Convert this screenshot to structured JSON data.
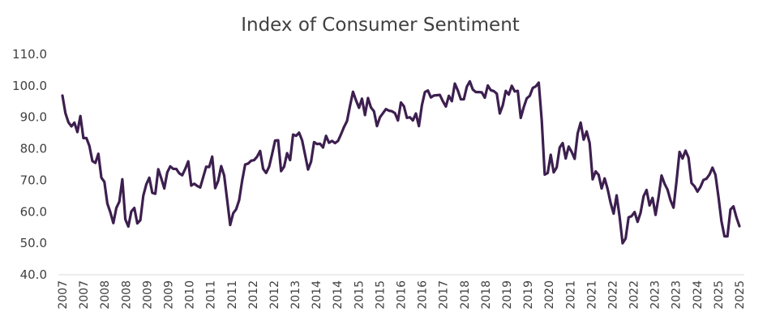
{
  "chart_data": {
    "type": "line",
    "title": "Index of Consumer Sentiment",
    "xlabel": "",
    "ylabel": "",
    "ylim": [
      40,
      110
    ],
    "yticks": [
      40,
      50,
      60,
      70,
      80,
      90,
      100,
      110
    ],
    "ytick_labels": [
      "40.0",
      "50.0",
      "60.0",
      "70.0",
      "80.0",
      "90.0",
      "100.0",
      "110.0"
    ],
    "xtick_labels": [
      "2007",
      "2007",
      "2008",
      "2008",
      "2009",
      "2009",
      "2010",
      "2011",
      "2011",
      "2012",
      "2012",
      "2013",
      "2014",
      "2014",
      "2015",
      "2015",
      "2016",
      "2016",
      "2017",
      "2018",
      "2018",
      "2019",
      "2019",
      "2020",
      "2021",
      "2021",
      "2022",
      "2022",
      "2023",
      "2023",
      "2024",
      "2025",
      "2025"
    ],
    "grid": false,
    "legend": "none",
    "line_color": "#3d1f4f",
    "series": [
      {
        "name": "Index of Consumer Sentiment",
        "values": [
          96.9,
          91.3,
          88.4,
          87.1,
          88.3,
          85.3,
          90.4,
          83.4,
          83.4,
          80.9,
          76.1,
          75.5,
          78.4,
          70.8,
          69.5,
          62.6,
          59.8,
          56.4,
          61.2,
          63.2,
          70.3,
          57.6,
          55.3,
          60.1,
          61.2,
          56.3,
          57.3,
          65.1,
          68.7,
          70.8,
          66.0,
          65.7,
          73.5,
          70.6,
          67.4,
          72.5,
          74.4,
          73.6,
          73.6,
          72.2,
          71.6,
          73.6,
          76.0,
          68.3,
          68.9,
          68.2,
          67.7,
          71.0,
          74.3,
          74.2,
          77.5,
          67.5,
          69.8,
          74.5,
          71.5,
          63.7,
          55.8,
          59.5,
          60.8,
          63.7,
          69.9,
          75.0,
          75.3,
          76.2,
          76.4,
          77.5,
          79.3,
          73.6,
          72.3,
          74.3,
          78.3,
          82.6,
          82.7,
          72.9,
          74.3,
          78.6,
          76.4,
          84.5,
          84.1,
          85.1,
          82.7,
          78.1,
          73.4,
          75.9,
          82.1,
          81.5,
          81.6,
          80.4,
          84.1,
          81.9,
          82.5,
          81.8,
          82.5,
          84.6,
          86.9,
          88.8,
          93.6,
          98.1,
          95.4,
          93.0,
          95.9,
          90.7,
          96.1,
          93.1,
          91.9,
          87.2,
          90.0,
          91.3,
          92.6,
          92.1,
          91.9,
          91.3,
          89.0,
          94.7,
          93.5,
          89.8,
          90.0,
          89.0,
          91.2,
          87.2,
          93.8,
          98.0,
          98.5,
          96.3,
          96.9,
          97.0,
          97.1,
          95.1,
          93.4,
          96.8,
          95.1,
          100.7,
          98.5,
          95.7,
          95.7,
          99.7,
          101.4,
          98.8,
          98.0,
          98.0,
          97.9,
          96.2,
          100.1,
          98.6,
          98.3,
          97.5,
          91.2,
          93.8,
          98.4,
          97.2,
          100.0,
          98.2,
          98.4,
          89.8,
          93.2,
          96.0,
          96.8,
          99.3,
          99.8,
          101.0,
          89.1,
          71.8,
          72.3,
          78.1,
          72.5,
          74.1,
          80.4,
          81.8,
          76.9,
          80.7,
          79.0,
          76.8,
          84.9,
          88.3,
          82.9,
          85.5,
          81.8,
          70.3,
          72.8,
          71.7,
          67.4,
          70.6,
          67.2,
          62.8,
          59.4,
          65.2,
          58.4,
          50.0,
          51.5,
          58.2,
          58.6,
          59.9,
          56.8,
          59.7,
          64.9,
          66.9,
          62.0,
          64.4,
          59.0,
          64.6,
          71.5,
          68.9,
          67.0,
          63.6,
          61.3,
          69.7,
          79.0,
          76.9,
          79.4,
          77.2,
          69.1,
          68.1,
          66.4,
          67.9,
          70.1,
          70.5,
          71.8,
          74.0,
          71.7,
          64.7,
          57.0,
          52.2,
          52.2,
          60.7,
          61.7,
          58.2,
          55.4
        ]
      }
    ]
  }
}
